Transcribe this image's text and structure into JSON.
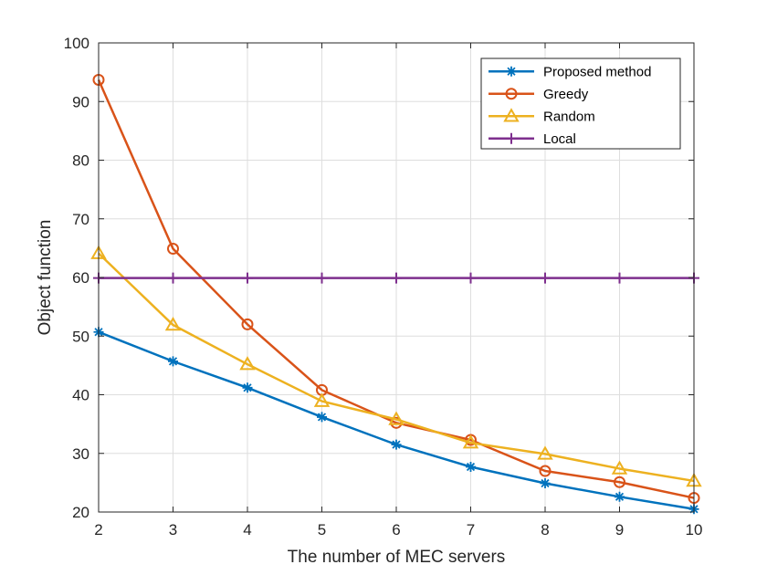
{
  "chart_data": {
    "type": "line",
    "title": "",
    "xlabel": "The number of MEC servers",
    "ylabel": "Object function",
    "xlim": [
      2,
      10
    ],
    "ylim": [
      20,
      100
    ],
    "x": [
      2,
      3,
      4,
      5,
      6,
      7,
      8,
      9,
      10
    ],
    "xticks": [
      "2",
      "3",
      "4",
      "5",
      "6",
      "7",
      "8",
      "9",
      "10"
    ],
    "yticks": [
      "20",
      "30",
      "40",
      "50",
      "60",
      "70",
      "80",
      "90",
      "100"
    ],
    "grid": true,
    "legend_position": "top-right",
    "series": [
      {
        "name": "Proposed method",
        "color": "#0072BD",
        "marker": "asterisk",
        "values": [
          50.7,
          45.7,
          41.2,
          36.2,
          31.5,
          27.7,
          24.9,
          22.6,
          20.5
        ]
      },
      {
        "name": "Greedy",
        "color": "#D95319",
        "marker": "circle",
        "values": [
          93.7,
          64.9,
          52.0,
          40.8,
          35.2,
          32.3,
          27.0,
          25.1,
          22.4
        ]
      },
      {
        "name": "Random",
        "color": "#EDB120",
        "marker": "triangle",
        "values": [
          64.1,
          51.9,
          45.2,
          38.9,
          35.8,
          31.8,
          29.9,
          27.4,
          25.3
        ]
      },
      {
        "name": "Local",
        "color": "#7E2F8E",
        "marker": "plus",
        "values": [
          59.9,
          59.9,
          59.9,
          59.9,
          59.9,
          59.9,
          59.9,
          59.9,
          59.9
        ]
      }
    ]
  }
}
